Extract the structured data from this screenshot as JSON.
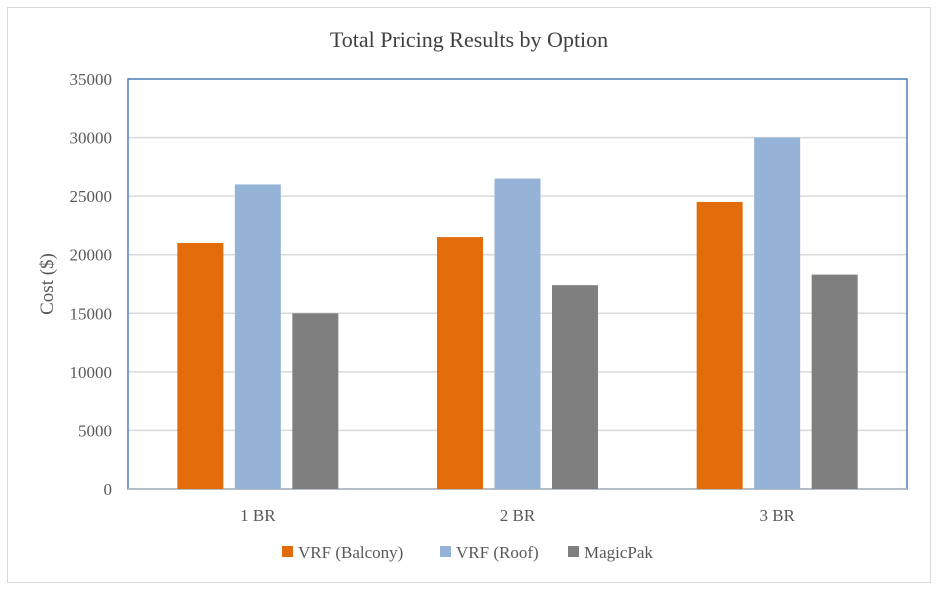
{
  "chart_data": {
    "type": "bar",
    "title": "Total Pricing Results by Option",
    "xlabel": "",
    "ylabel": "Cost ($)",
    "ylim": [
      0,
      35000
    ],
    "yticks": [
      0,
      5000,
      10000,
      15000,
      20000,
      25000,
      30000,
      35000
    ],
    "grid": true,
    "legend": "bottom",
    "categories": [
      "1 BR",
      "2 BR",
      "3 BR"
    ],
    "series": [
      {
        "name": "VRF (Balcony)",
        "color": "#e36c0a",
        "values": [
          21000,
          21500,
          24500
        ]
      },
      {
        "name": "VRF (Roof)",
        "color": "#95b3d7",
        "values": [
          26000,
          26500,
          30000
        ]
      },
      {
        "name": "MagicPak",
        "color": "#7f7f7f",
        "values": [
          15000,
          17400,
          18300
        ]
      }
    ]
  }
}
